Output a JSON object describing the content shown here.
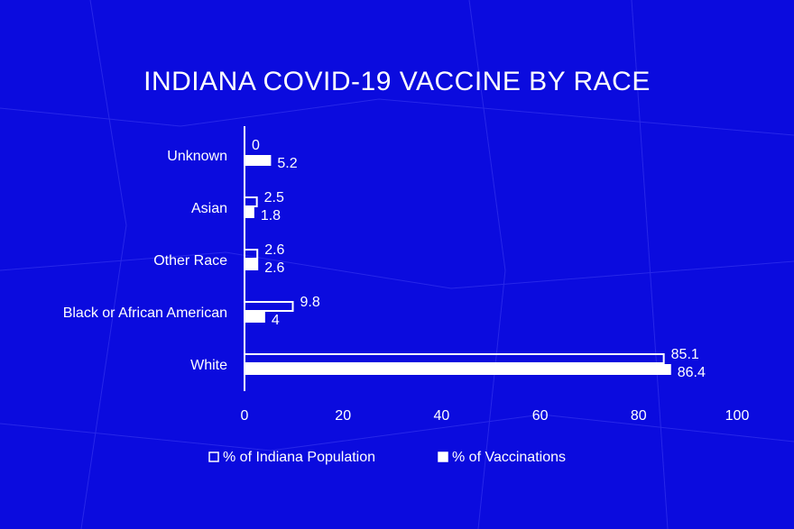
{
  "chart_data": {
    "type": "bar",
    "orientation": "horizontal",
    "title": "INDIANA COVID-19 VACCINE BY RACE",
    "categories": [
      "Unknown",
      "Asian",
      "Other Race",
      "Black or African American",
      "White"
    ],
    "series": [
      {
        "name": "% of Indiana Population",
        "color": "#ffffff",
        "fill": "none",
        "values": [
          0,
          2.5,
          2.6,
          9.8,
          85.1
        ]
      },
      {
        "name": "% of Vaccinations",
        "color": "#ffffff",
        "fill": "#ffffff",
        "values": [
          5.2,
          1.8,
          2.6,
          4,
          86.4
        ]
      }
    ],
    "xlim": [
      0,
      100
    ],
    "xticks": [
      0,
      20,
      40,
      60,
      80,
      100
    ],
    "legend": "bottom",
    "background": "#0b0bde"
  }
}
